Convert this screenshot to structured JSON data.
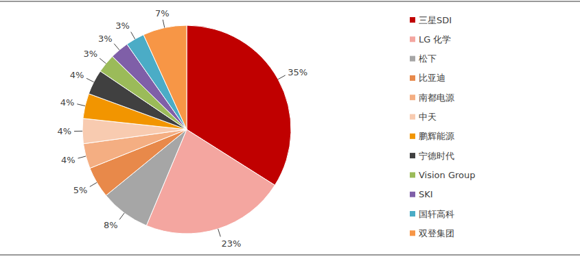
{
  "chart_data": {
    "type": "pie",
    "categories": [
      "三星SDI",
      "LG 化学",
      "松下",
      "比亚迪",
      "南都电源",
      "中天",
      "鹏辉能源",
      "宁德时代",
      "Vision Group",
      "SKI",
      "国轩高科",
      "双登集团"
    ],
    "values": [
      35,
      23,
      8,
      5,
      4,
      4,
      4,
      4,
      3,
      3,
      3,
      7
    ],
    "value_labels": [
      "35%",
      "23%",
      "8%",
      "5%",
      "4%",
      "4%",
      "4%",
      "4%",
      "3%",
      "3%",
      "3%",
      "7%"
    ],
    "colors": [
      "#c00000",
      "#f4a6a0",
      "#a6a6a6",
      "#e8894a",
      "#f4ae82",
      "#f8cbb0",
      "#f29500",
      "#404040",
      "#9bbb59",
      "#7f5fa8",
      "#4bacc6",
      "#f79646"
    ],
    "data_labels": true,
    "legend": "right"
  }
}
